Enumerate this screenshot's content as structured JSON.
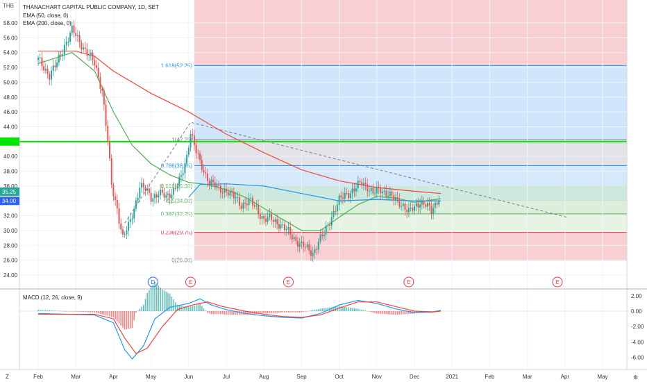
{
  "header": {
    "currency": "THB",
    "title": "THANACHART CAPITAL PUBLIC COMPANY, 1D, SET",
    "indicators": [
      "EMA (50, close, 0)",
      "EMA (200, close, 0)"
    ],
    "macd_label": "MACD (12, 26, close, 9)"
  },
  "price_tags": [
    {
      "value": "35.25",
      "color": "#26a69a"
    },
    {
      "value": "34.00",
      "color": "#2962ff"
    },
    {
      "value": "",
      "color": "#00e600"
    }
  ],
  "footer": {
    "left": "Z",
    "right_icon": "gear-icon"
  },
  "event_markers": [
    {
      "label": "D",
      "color": "#2962ff",
      "x_month": 3.05
    },
    {
      "label": "E",
      "color": "#f23645",
      "x_month": 4.05
    },
    {
      "label": "E",
      "color": "#f23645",
      "x_month": 6.65
    },
    {
      "label": "E",
      "color": "#f23645",
      "x_month": 9.85
    },
    {
      "label": "E",
      "color": "#f23645",
      "x_month": 13.8
    }
  ],
  "chart_data": {
    "type": "candlestick",
    "title": "THANACHART CAPITAL PUBLIC COMPANY, 1D, SET",
    "y_ticks": [
      "58.00",
      "56.00",
      "54.00",
      "52.00",
      "50.00",
      "48.00",
      "46.00",
      "44.00",
      "42.00",
      "40.00",
      "38.00",
      "36.00",
      "34.00",
      "32.00",
      "30.00",
      "28.00",
      "26.00",
      "24.00"
    ],
    "x_ticks": [
      "Feb",
      "Mar",
      "Apr",
      "May",
      "Jun",
      "Jul",
      "Aug",
      "Sep",
      "Oct",
      "Nov",
      "Dec",
      "2021",
      "Feb",
      "Mar",
      "Apr",
      "May"
    ],
    "ylim": [
      23,
      58.5
    ],
    "price_points": [
      [
        0.0,
        53
      ],
      [
        0.3,
        51
      ],
      [
        0.5,
        52.5
      ],
      [
        0.7,
        55
      ],
      [
        0.9,
        57
      ],
      [
        1.1,
        55.5
      ],
      [
        1.3,
        54
      ],
      [
        1.5,
        52.5
      ],
      [
        1.7,
        49
      ],
      [
        1.85,
        42
      ],
      [
        1.95,
        36
      ],
      [
        2.1,
        33
      ],
      [
        2.25,
        29
      ],
      [
        2.4,
        30.5
      ],
      [
        2.55,
        33
      ],
      [
        2.7,
        36
      ],
      [
        2.85,
        35.5
      ],
      [
        3.0,
        34.5
      ],
      [
        3.2,
        35
      ],
      [
        3.4,
        34.5
      ],
      [
        3.6,
        35.5
      ],
      [
        3.8,
        37
      ],
      [
        3.95,
        40
      ],
      [
        4.05,
        43.5
      ],
      [
        4.15,
        41.5
      ],
      [
        4.3,
        39
      ],
      [
        4.45,
        37.5
      ],
      [
        4.6,
        36.5
      ],
      [
        4.8,
        35.5
      ],
      [
        5.0,
        35.5
      ],
      [
        5.2,
        34.5
      ],
      [
        5.4,
        33.5
      ],
      [
        5.6,
        34
      ],
      [
        5.8,
        33
      ],
      [
        6.0,
        31.5
      ],
      [
        6.2,
        31.5
      ],
      [
        6.4,
        31
      ],
      [
        6.6,
        30
      ],
      [
        6.8,
        29
      ],
      [
        7.0,
        28
      ],
      [
        7.15,
        27.5
      ],
      [
        7.3,
        27
      ],
      [
        7.45,
        28.5
      ],
      [
        7.6,
        29.5
      ],
      [
        7.8,
        32
      ],
      [
        8.0,
        34
      ],
      [
        8.2,
        35
      ],
      [
        8.4,
        35.5
      ],
      [
        8.6,
        36.5
      ],
      [
        8.75,
        36
      ],
      [
        8.9,
        35
      ],
      [
        9.1,
        35.5
      ],
      [
        9.3,
        35
      ],
      [
        9.5,
        34
      ],
      [
        9.7,
        33.5
      ],
      [
        9.85,
        32.5
      ],
      [
        10.0,
        33
      ],
      [
        10.15,
        34
      ],
      [
        10.3,
        33.5
      ],
      [
        10.45,
        32.5
      ],
      [
        10.6,
        34
      ],
      [
        10.7,
        35.25
      ]
    ],
    "ema50": [
      [
        0.0,
        52.5
      ],
      [
        0.9,
        54
      ],
      [
        1.5,
        51.5
      ],
      [
        2.0,
        46
      ],
      [
        2.5,
        41.5
      ],
      [
        3.0,
        39
      ],
      [
        3.5,
        37.5
      ],
      [
        4.0,
        36.5
      ],
      [
        4.5,
        36.2
      ],
      [
        5.0,
        35.5
      ],
      [
        5.5,
        34.5
      ],
      [
        6.0,
        33
      ],
      [
        6.5,
        31.5
      ],
      [
        7.0,
        30
      ],
      [
        7.5,
        30
      ],
      [
        8.0,
        31.8
      ],
      [
        8.5,
        33.5
      ],
      [
        9.0,
        34.6
      ],
      [
        9.5,
        34.4
      ],
      [
        10.0,
        33.8
      ],
      [
        10.7,
        34.3
      ]
    ],
    "ema200": [
      [
        0.0,
        54.2
      ],
      [
        1.0,
        54.2
      ],
      [
        1.5,
        53.5
      ],
      [
        2.0,
        51.5
      ],
      [
        3.0,
        48.5
      ],
      [
        4.0,
        46
      ],
      [
        4.5,
        44.5
      ],
      [
        5.0,
        43
      ],
      [
        6.0,
        40.5
      ],
      [
        7.0,
        38.2
      ],
      [
        8.0,
        36.7
      ],
      [
        9.0,
        35.8
      ],
      [
        10.0,
        35.3
      ],
      [
        10.7,
        35.0
      ]
    ],
    "trend_line": [
      [
        2.3,
        31
      ],
      [
        4.05,
        44.6
      ],
      [
        14.05,
        31.8
      ]
    ],
    "fib_levels": [
      {
        "ratio": "1.618(52.25)",
        "value": 52.25,
        "color": "#2196f3"
      },
      {
        "ratio": "1(42.25)",
        "value": 42.25,
        "color": "#787b86"
      },
      {
        "ratio": "0.786(38.75)",
        "value": 38.75,
        "color": "#2196f3"
      },
      {
        "ratio": "0.618(36.00)",
        "value": 36.0,
        "color": "#4caf50"
      },
      {
        "ratio": "0.5(34.00)",
        "value": 34.0,
        "color": "#4caf50"
      },
      {
        "ratio": "0.382(32.25)",
        "value": 32.25,
        "color": "#4caf50"
      },
      {
        "ratio": "0.236(29.75)",
        "value": 29.75,
        "color": "#f23645"
      },
      {
        "ratio": "0(26.00)",
        "value": 26.0,
        "color": "#787b86"
      }
    ],
    "horizontal_line": 42.0,
    "macd": {
      "y_ticks": [
        "2.00",
        "0.00",
        "-2.00",
        "-4.00",
        "-6.00"
      ],
      "ylim": [
        -7,
        2.5
      ],
      "macd_line": [
        [
          0,
          -0.3
        ],
        [
          1.5,
          -0.5
        ],
        [
          2.0,
          -1.5
        ],
        [
          2.3,
          -5.0
        ],
        [
          2.5,
          -6.2
        ],
        [
          2.8,
          -4.5
        ],
        [
          3.1,
          -1.0
        ],
        [
          3.5,
          0.5
        ],
        [
          4.0,
          1.0
        ],
        [
          4.3,
          1.6
        ],
        [
          4.6,
          0.8
        ],
        [
          5.0,
          0.2
        ],
        [
          5.5,
          -0.3
        ],
        [
          6.0,
          -0.6
        ],
        [
          6.5,
          -0.8
        ],
        [
          7.0,
          -0.9
        ],
        [
          7.5,
          -0.3
        ],
        [
          8.0,
          0.8
        ],
        [
          8.5,
          1.4
        ],
        [
          9.0,
          1.0
        ],
        [
          9.5,
          0.3
        ],
        [
          10.0,
          -0.2
        ],
        [
          10.5,
          -0.1
        ],
        [
          10.7,
          0.1
        ]
      ],
      "signal_line": [
        [
          0,
          -0.4
        ],
        [
          1.5,
          -0.4
        ],
        [
          2.0,
          -1.0
        ],
        [
          2.3,
          -3.5
        ],
        [
          2.6,
          -5.5
        ],
        [
          2.9,
          -4.8
        ],
        [
          3.3,
          -2.0
        ],
        [
          3.7,
          0.2
        ],
        [
          4.1,
          0.8
        ],
        [
          4.5,
          1.2
        ],
        [
          4.9,
          0.6
        ],
        [
          5.5,
          0.0
        ],
        [
          6.0,
          -0.4
        ],
        [
          6.5,
          -0.7
        ],
        [
          7.0,
          -0.8
        ],
        [
          7.5,
          -0.5
        ],
        [
          8.0,
          0.4
        ],
        [
          8.5,
          1.2
        ],
        [
          9.0,
          1.2
        ],
        [
          9.5,
          0.6
        ],
        [
          10.0,
          0.0
        ],
        [
          10.5,
          -0.1
        ],
        [
          10.7,
          0.0
        ]
      ]
    }
  }
}
